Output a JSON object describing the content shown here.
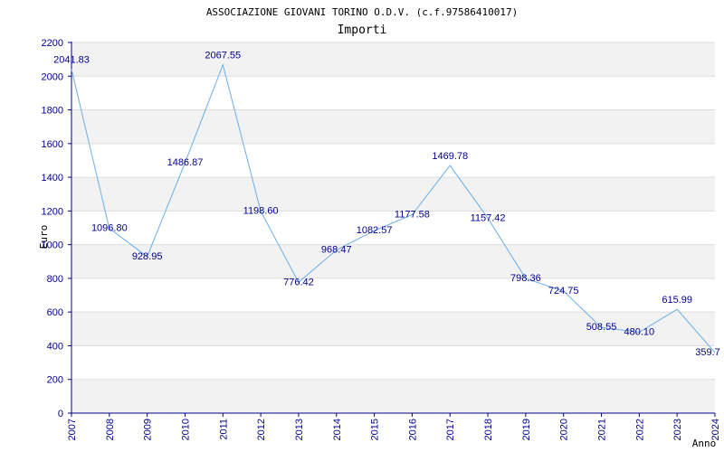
{
  "chart_data": {
    "type": "line",
    "title": "ASSOCIAZIONE GIOVANI TORINO O.D.V. (c.f.97586410017)",
    "subtitle": "Importi",
    "xlabel": "Anno",
    "ylabel": "Euro",
    "ylim": [
      0,
      2200
    ],
    "y_ticks": [
      "0",
      "200",
      "400",
      "600",
      "800",
      "1000",
      "1200",
      "1400",
      "1600",
      "1800",
      "2000",
      "2200"
    ],
    "categories": [
      "2007",
      "2008",
      "2009",
      "2010",
      "2011",
      "2012",
      "2013",
      "2014",
      "2015",
      "2016",
      "2017",
      "2018",
      "2019",
      "2020",
      "2021",
      "2022",
      "2023",
      "2024"
    ],
    "values": [
      2041.83,
      1096.8,
      928.95,
      1486.87,
      2067.55,
      1198.6,
      776.42,
      968.47,
      1082.57,
      1177.58,
      1469.78,
      1157.42,
      798.36,
      724.75,
      508.55,
      480.1,
      615.99,
      359.7
    ],
    "data_labels": [
      "2041.83",
      "1096.80",
      "928.95",
      "1486.87",
      "2067.55",
      "1198.60",
      "776.42",
      "968.47",
      "1082.57",
      "1177.58",
      "1469.78",
      "1157.42",
      "798.36",
      "724.75",
      "508.55",
      "480.10",
      "615.99",
      "359.7"
    ],
    "grid": true,
    "legend": "none",
    "colors": {
      "line": "#6aaeea",
      "band": "#f2f2f2",
      "gridline": "#dddddd",
      "axis": "#00008b",
      "text": "#00008b"
    }
  }
}
